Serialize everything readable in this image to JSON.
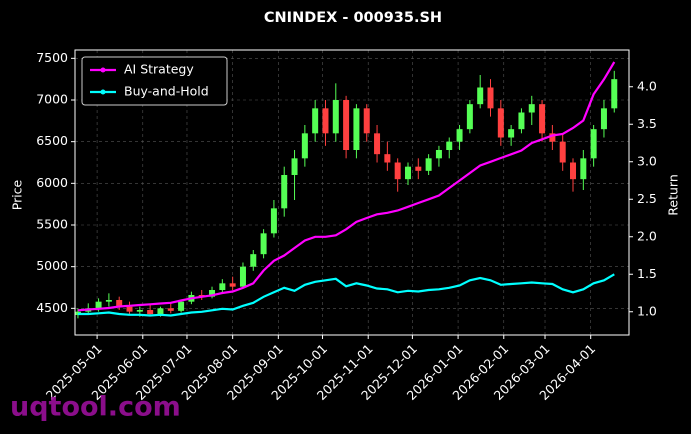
{
  "chart_data": {
    "type": "candlestick",
    "title": "CNINDEX - 000935.SH",
    "ylabel": "Price",
    "y2label": "Return",
    "watermark": "uqtool.com",
    "x": [
      "2025-04-18",
      "2025-04-25",
      "2025-05-02",
      "2025-05-09",
      "2025-05-16",
      "2025-05-23",
      "2025-05-30",
      "2025-06-06",
      "2025-06-13",
      "2025-06-20",
      "2025-06-27",
      "2025-07-04",
      "2025-07-11",
      "2025-07-18",
      "2025-07-25",
      "2025-08-01",
      "2025-08-08",
      "2025-08-15",
      "2025-08-22",
      "2025-08-29",
      "2025-09-05",
      "2025-09-12",
      "2025-09-19",
      "2025-09-26",
      "2025-10-03",
      "2025-10-10",
      "2025-10-17",
      "2025-10-24",
      "2025-10-31",
      "2025-11-07",
      "2025-11-14",
      "2025-11-21",
      "2025-11-28",
      "2025-12-05",
      "2025-12-12",
      "2025-12-19",
      "2025-12-26",
      "2026-01-02",
      "2026-01-09",
      "2026-01-16",
      "2026-01-23",
      "2026-01-30",
      "2026-02-06",
      "2026-02-13",
      "2026-02-20",
      "2026-02-27",
      "2026-03-06",
      "2026-03-13",
      "2026-03-20",
      "2026-03-27",
      "2026-04-03",
      "2026-04-10",
      "2026-04-17"
    ],
    "open": [
      4420,
      4460,
      4500,
      4580,
      4600,
      4520,
      4460,
      4480,
      4430,
      4500,
      4470,
      4580,
      4660,
      4640,
      4720,
      4800,
      4760,
      5000,
      5150,
      5400,
      5700,
      6100,
      6300,
      6600,
      6900,
      6600,
      7000,
      6400,
      6900,
      6600,
      6350,
      6250,
      6050,
      6200,
      6150,
      6300,
      6400,
      6500,
      6650,
      6950,
      7150,
      6900,
      6550,
      6650,
      6850,
      6950,
      6600,
      6500,
      6250,
      6050,
      6300,
      6650,
      6900
    ],
    "high": [
      4500,
      4560,
      4620,
      4680,
      4640,
      4580,
      4520,
      4540,
      4520,
      4560,
      4600,
      4700,
      4720,
      4760,
      4850,
      4880,
      5050,
      5200,
      5450,
      5800,
      6200,
      6400,
      6700,
      7000,
      7000,
      7200,
      7050,
      6950,
      6950,
      6700,
      6500,
      6300,
      6250,
      6300,
      6350,
      6450,
      6550,
      6700,
      7000,
      7300,
      7250,
      7000,
      6700,
      6900,
      7050,
      7000,
      6700,
      6600,
      6300,
      6400,
      6700,
      7000,
      7350
    ],
    "low": [
      4380,
      4420,
      4460,
      4520,
      4480,
      4420,
      4400,
      4410,
      4400,
      4440,
      4450,
      4550,
      4600,
      4620,
      4690,
      4720,
      4750,
      4950,
      5100,
      5350,
      5600,
      5800,
      6200,
      6500,
      6450,
      6500,
      6300,
      6300,
      6500,
      6250,
      6150,
      5900,
      5980,
      6050,
      6100,
      6200,
      6300,
      6400,
      6600,
      6900,
      6800,
      6450,
      6450,
      6600,
      6700,
      6500,
      6400,
      6150,
      5900,
      5920,
      6200,
      6550,
      6850
    ],
    "close": [
      4460,
      4500,
      4580,
      4600,
      4520,
      4460,
      4480,
      4430,
      4500,
      4470,
      4580,
      4660,
      4640,
      4720,
      4800,
      4760,
      5000,
      5150,
      5400,
      5700,
      6100,
      6300,
      6600,
      6900,
      6600,
      7000,
      6400,
      6900,
      6600,
      6350,
      6250,
      6050,
      6200,
      6150,
      6300,
      6400,
      6500,
      6650,
      6950,
      7150,
      6900,
      6550,
      6650,
      6850,
      6950,
      6600,
      6500,
      6250,
      6050,
      6300,
      6650,
      6900,
      7250
    ],
    "up_color": "#55ff55",
    "down_color": "#ff4040",
    "series": [
      {
        "name": "AI Strategy",
        "color": "#ff00ff",
        "axis": "y2",
        "values": [
          1.02,
          1.03,
          1.04,
          1.05,
          1.07,
          1.08,
          1.09,
          1.1,
          1.11,
          1.12,
          1.15,
          1.18,
          1.2,
          1.22,
          1.25,
          1.27,
          1.32,
          1.38,
          1.55,
          1.68,
          1.75,
          1.85,
          1.95,
          2.0,
          2.0,
          2.02,
          2.1,
          2.2,
          2.25,
          2.3,
          2.32,
          2.35,
          2.4,
          2.45,
          2.5,
          2.55,
          2.65,
          2.75,
          2.85,
          2.95,
          3.0,
          3.05,
          3.1,
          3.15,
          3.25,
          3.3,
          3.35,
          3.37,
          3.45,
          3.55,
          3.9,
          4.1,
          4.33
        ]
      },
      {
        "name": "Buy-and-Hold",
        "color": "#00ffff",
        "axis": "y2",
        "values": [
          0.97,
          0.97,
          0.98,
          0.99,
          0.97,
          0.96,
          0.96,
          0.95,
          0.96,
          0.95,
          0.97,
          0.99,
          1.0,
          1.02,
          1.04,
          1.03,
          1.08,
          1.12,
          1.2,
          1.26,
          1.32,
          1.28,
          1.36,
          1.4,
          1.42,
          1.44,
          1.34,
          1.38,
          1.35,
          1.31,
          1.3,
          1.26,
          1.28,
          1.27,
          1.29,
          1.3,
          1.32,
          1.35,
          1.42,
          1.45,
          1.42,
          1.36,
          1.37,
          1.38,
          1.39,
          1.38,
          1.37,
          1.3,
          1.26,
          1.3,
          1.38,
          1.42,
          1.5
        ]
      }
    ],
    "xlim": [
      "2025-04-16",
      "2026-04-27"
    ],
    "xticks": [
      "2025-05-01",
      "2025-06-01",
      "2025-07-01",
      "2025-08-01",
      "2025-09-01",
      "2025-10-01",
      "2025-11-01",
      "2025-12-01",
      "2026-01-01",
      "2026-02-01",
      "2026-03-01",
      "2026-04-01"
    ],
    "ylim": [
      4180,
      7600
    ],
    "yticks": [
      4500,
      5000,
      5500,
      6000,
      6500,
      7000,
      7500
    ],
    "y2lim": [
      0.69,
      4.49
    ],
    "y2ticks": [
      {
        "value": 1,
        "label": "1.0"
      },
      {
        "value": 1.5,
        "label": "1.5"
      },
      {
        "value": 2,
        "label": "2.0"
      },
      {
        "value": 2.5,
        "label": "2.5"
      },
      {
        "value": 3,
        "label": "3.0"
      },
      {
        "value": 3.5,
        "label": "3.5"
      },
      {
        "value": 4,
        "label": "4.0"
      }
    ],
    "grid": true,
    "legend": "upper left"
  }
}
